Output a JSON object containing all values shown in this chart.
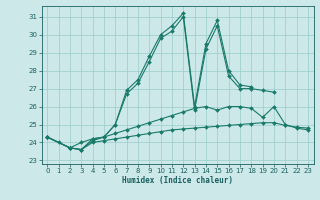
{
  "xlabel": "Humidex (Indice chaleur)",
  "background_color": "#cce8e8",
  "grid_color": "#99cccc",
  "line_color": "#1a7a6a",
  "xlim": [
    -0.5,
    23.5
  ],
  "ylim": [
    22.8,
    31.6
  ],
  "yticks": [
    23,
    24,
    25,
    26,
    27,
    28,
    29,
    30,
    31
  ],
  "xticks": [
    0,
    1,
    2,
    3,
    4,
    5,
    6,
    7,
    8,
    9,
    10,
    11,
    12,
    13,
    14,
    15,
    16,
    17,
    18,
    19,
    20,
    21,
    22,
    23
  ],
  "series1_x": [
    0,
    1,
    2,
    3,
    4,
    5,
    6,
    7,
    8,
    9,
    10,
    11,
    12,
    13,
    14,
    15,
    16,
    17,
    18
  ],
  "series1_y": [
    24.3,
    24.0,
    23.7,
    23.6,
    24.2,
    24.3,
    25.0,
    26.9,
    27.5,
    28.8,
    30.0,
    30.5,
    31.2,
    26.0,
    29.5,
    30.8,
    28.0,
    27.2,
    27.1
  ],
  "series2_x": [
    0,
    2,
    3,
    4,
    5,
    6,
    7,
    8,
    9,
    10,
    11,
    12,
    13,
    14,
    15,
    16,
    17,
    18,
    19,
    20
  ],
  "series2_y": [
    24.3,
    23.7,
    24.0,
    24.2,
    24.3,
    25.0,
    26.7,
    27.3,
    28.5,
    29.8,
    30.2,
    31.0,
    25.8,
    29.2,
    30.5,
    27.7,
    27.0,
    27.0,
    26.9,
    26.8
  ],
  "series3_x": [
    0,
    2,
    3,
    4,
    5,
    6,
    7,
    8,
    9,
    10,
    11,
    12,
    13,
    14,
    15,
    16,
    17,
    18,
    19,
    20,
    21,
    22,
    23
  ],
  "series3_y": [
    24.3,
    23.7,
    23.6,
    24.1,
    24.3,
    24.5,
    24.7,
    24.9,
    25.1,
    25.3,
    25.5,
    25.7,
    25.9,
    26.0,
    25.8,
    26.0,
    26.0,
    25.9,
    25.4,
    26.0,
    25.0,
    24.8,
    24.7
  ],
  "series4_x": [
    0,
    2,
    3,
    4,
    5,
    6,
    7,
    8,
    9,
    10,
    11,
    12,
    13,
    14,
    15,
    16,
    17,
    18,
    19,
    20,
    21,
    22,
    23
  ],
  "series4_y": [
    24.3,
    23.7,
    23.6,
    24.0,
    24.1,
    24.2,
    24.3,
    24.4,
    24.5,
    24.6,
    24.7,
    24.75,
    24.8,
    24.85,
    24.9,
    24.95,
    25.0,
    25.05,
    25.1,
    25.1,
    24.95,
    24.85,
    24.8
  ]
}
